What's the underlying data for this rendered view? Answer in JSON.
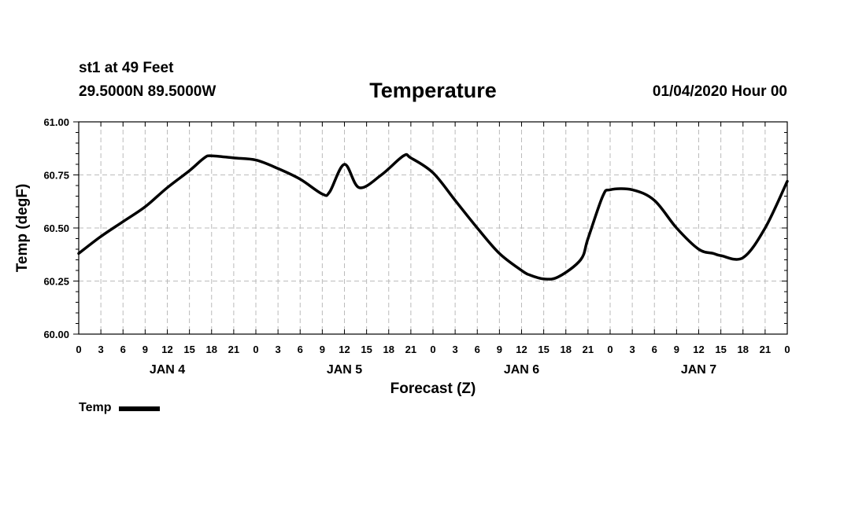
{
  "header": {
    "station": "st1 at 49 Feet",
    "coords": "29.5000N 89.5000W",
    "title": "Temperature",
    "datetime": "01/04/2020 Hour 00"
  },
  "chart_data": {
    "type": "line",
    "title": "Temperature",
    "xlabel": "Forecast (Z)",
    "ylabel": "Temp (degF)",
    "ylim": [
      60.0,
      61.0
    ],
    "yticks": [
      "60.00",
      "60.25",
      "60.50",
      "60.75",
      "61.00"
    ],
    "xlim_hours": [
      0,
      96
    ],
    "xtick_labels": [
      "0",
      "3",
      "6",
      "9",
      "12",
      "15",
      "18",
      "21",
      "0",
      "3",
      "6",
      "9",
      "12",
      "15",
      "18",
      "21",
      "0",
      "3",
      "6",
      "9",
      "12",
      "15",
      "18",
      "21",
      "0",
      "3",
      "6",
      "9",
      "12",
      "15",
      "18",
      "21",
      "0"
    ],
    "day_labels": [
      {
        "label": "JAN 4",
        "hour": 12
      },
      {
        "label": "JAN 5",
        "hour": 36
      },
      {
        "label": "JAN 6",
        "hour": 60
      },
      {
        "label": "JAN 7",
        "hour": 84
      }
    ],
    "grid": true,
    "series": [
      {
        "name": "Temp",
        "color": "#000000",
        "x": [
          0,
          3,
          6,
          9,
          12,
          15,
          17,
          18,
          21,
          24,
          27,
          30,
          33,
          34,
          36,
          38,
          41,
          44,
          45,
          48,
          51,
          54,
          57,
          60,
          61,
          63,
          65,
          68,
          69,
          71,
          72,
          75,
          78,
          81,
          84,
          86,
          87,
          90,
          93,
          96
        ],
        "y": [
          60.38,
          60.46,
          60.53,
          60.6,
          60.69,
          60.77,
          60.83,
          60.84,
          60.83,
          60.82,
          60.78,
          60.73,
          60.66,
          60.67,
          60.8,
          60.69,
          60.75,
          60.84,
          60.83,
          60.76,
          60.63,
          60.5,
          60.38,
          60.3,
          60.28,
          60.26,
          60.27,
          60.35,
          60.45,
          60.65,
          60.68,
          60.68,
          60.63,
          60.5,
          60.4,
          60.38,
          60.37,
          60.36,
          60.5,
          60.72
        ]
      }
    ],
    "legend": {
      "label": "Temp",
      "position": "bottom-left"
    }
  }
}
